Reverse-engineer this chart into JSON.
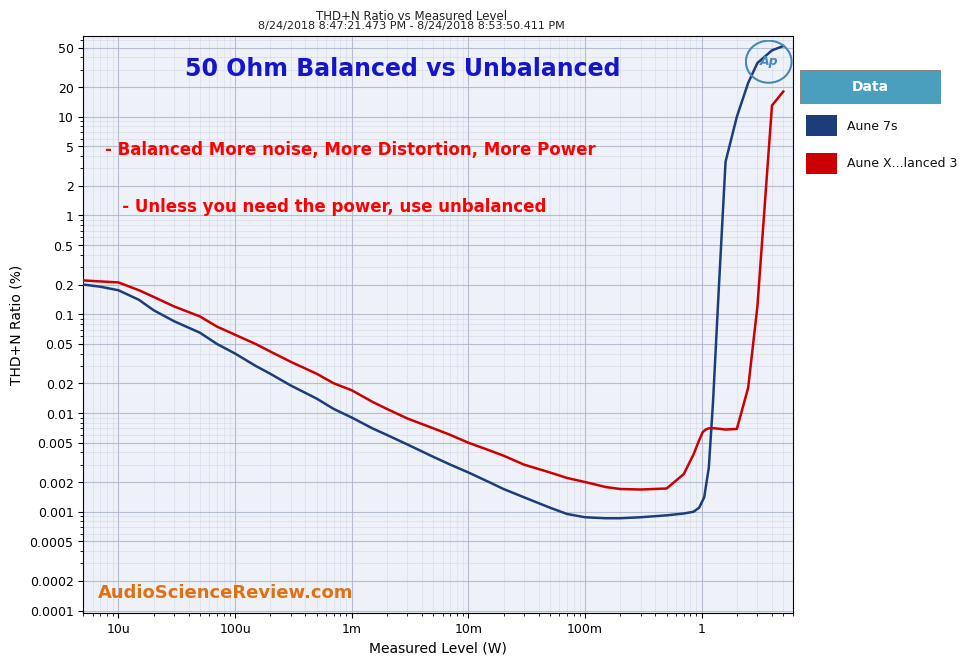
{
  "title_main": "50 Ohm Balanced vs Unbalanced",
  "title_top": "THD+N Ratio vs Measured Level",
  "title_date": "8/24/2018 8:47:21.473 PM - 8/24/2018 8:53:50.411 PM",
  "xlabel": "Measured Level (W)",
  "ylabel": "THD+N Ratio (%)",
  "watermark": "AudioScienceReview.com",
  "annotation_line1": "- Balanced More noise, More Distortion, More Power",
  "annotation_line2": "   - Unless you need the power, use unbalanced",
  "legend_title": "Data",
  "legend_entries": [
    "Aune 7s",
    "Aune X...lanced 3"
  ],
  "line_colors": [
    "#1c3d7a",
    "#cc0000"
  ],
  "blue_data_x": [
    5e-06,
    7e-06,
    1e-05,
    1.5e-05,
    2e-05,
    3e-05,
    5e-05,
    7e-05,
    0.0001,
    0.00015,
    0.0002,
    0.0003,
    0.0005,
    0.0007,
    0.001,
    0.0015,
    0.002,
    0.003,
    0.005,
    0.007,
    0.01,
    0.015,
    0.02,
    0.03,
    0.05,
    0.07,
    0.1,
    0.15,
    0.2,
    0.3,
    0.5,
    0.7,
    0.85,
    0.95,
    1.05,
    1.15,
    1.25,
    1.4,
    1.6,
    2.0,
    2.5,
    3.0,
    4.0,
    5.0
  ],
  "blue_data_y": [
    0.2,
    0.19,
    0.175,
    0.14,
    0.11,
    0.085,
    0.065,
    0.05,
    0.04,
    0.03,
    0.025,
    0.019,
    0.014,
    0.011,
    0.009,
    0.007,
    0.006,
    0.0048,
    0.0036,
    0.003,
    0.0025,
    0.002,
    0.0017,
    0.0014,
    0.0011,
    0.00095,
    0.00088,
    0.00086,
    0.00086,
    0.00088,
    0.00092,
    0.00096,
    0.001,
    0.0011,
    0.0014,
    0.0028,
    0.013,
    0.18,
    3.5,
    10.0,
    22.0,
    35.0,
    47.0,
    52.0
  ],
  "red_data_x": [
    5e-06,
    7e-06,
    1e-05,
    1.5e-05,
    2e-05,
    3e-05,
    5e-05,
    7e-05,
    0.0001,
    0.00015,
    0.0002,
    0.0003,
    0.0005,
    0.0007,
    0.001,
    0.0015,
    0.002,
    0.003,
    0.005,
    0.007,
    0.01,
    0.015,
    0.02,
    0.03,
    0.05,
    0.07,
    0.1,
    0.12,
    0.15,
    0.2,
    0.3,
    0.5,
    0.7,
    0.85,
    0.95,
    1.02,
    1.08,
    1.15,
    1.3,
    1.6,
    2.0,
    2.5,
    3.0,
    4.0,
    5.0
  ],
  "red_data_y": [
    0.22,
    0.215,
    0.21,
    0.175,
    0.15,
    0.12,
    0.095,
    0.075,
    0.062,
    0.05,
    0.042,
    0.033,
    0.025,
    0.02,
    0.017,
    0.013,
    0.011,
    0.0088,
    0.007,
    0.006,
    0.005,
    0.0042,
    0.0037,
    0.003,
    0.0025,
    0.0022,
    0.002,
    0.0019,
    0.00178,
    0.0017,
    0.00168,
    0.00172,
    0.0024,
    0.0038,
    0.0053,
    0.0064,
    0.0068,
    0.007,
    0.007,
    0.0068,
    0.0069,
    0.018,
    0.12,
    13.0,
    18.0
  ],
  "background_color": "#eef2f8",
  "grid_major_color": "#b0b8cc",
  "grid_minor_color": "#c8cedd",
  "legend_header_color": "#4a9fbf",
  "x_ticks": [
    1e-05,
    0.0001,
    0.001,
    0.01,
    0.1,
    1.0
  ],
  "x_labels": [
    "10u",
    "100u",
    "1m",
    "10m",
    "100m",
    "1"
  ],
  "y_ticks": [
    0.0001,
    0.0002,
    0.0005,
    0.001,
    0.002,
    0.005,
    0.01,
    0.02,
    0.05,
    0.1,
    0.2,
    0.5,
    1,
    2,
    5,
    10,
    20,
    50
  ],
  "y_labels": [
    "0.0001",
    "0.0002",
    "0.0005",
    "0.001",
    "0.002",
    "0.005",
    "0.01",
    "0.02",
    "0.05",
    "0.1",
    "0.2",
    "0.5",
    "1",
    "2",
    "5",
    "10",
    "20",
    "50"
  ]
}
